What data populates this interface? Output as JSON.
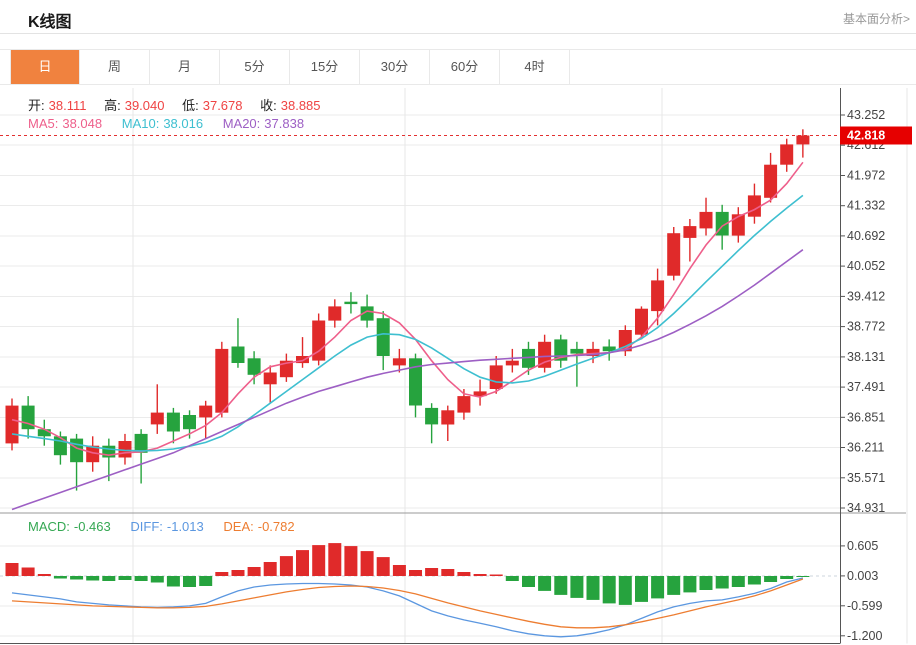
{
  "header": {
    "title": "K线图",
    "link_label": "基本面分析>"
  },
  "tabs": {
    "items": [
      "日",
      "周",
      "月",
      "5分",
      "15分",
      "30分",
      "60分",
      "4时"
    ],
    "active_index": 0
  },
  "ohlc": {
    "open": {
      "label": "开:",
      "value": "38.111"
    },
    "high": {
      "label": "高:",
      "value": "39.040"
    },
    "low": {
      "label": "低:",
      "value": "37.678"
    },
    "close": {
      "label": "收:",
      "value": "38.885"
    }
  },
  "ma": {
    "ma5": {
      "label": "MA5:",
      "value": "38.048"
    },
    "ma10": {
      "label": "MA10:",
      "value": "38.016"
    },
    "ma20": {
      "label": "MA20:",
      "value": "37.838"
    }
  },
  "macd_header": {
    "macd": {
      "label": "MACD:",
      "value": "-0.463"
    },
    "diff": {
      "label": "DIFF:",
      "value": "-1.013"
    },
    "dea": {
      "label": "DEA:",
      "value": "-0.782"
    }
  },
  "colors": {
    "up": "#e02a2a",
    "down": "#26a33e",
    "ma5": "#ee5f8b",
    "ma10": "#3ebfd0",
    "ma20": "#9d5fc4",
    "diff": "#5b97e0",
    "dea": "#ed7d31",
    "macd_text": "#35a853",
    "value_red": "#ef4343",
    "label_dark": "#222222",
    "price_tag_bg": "#e60000",
    "price_line": "#e23030",
    "tab_active_bg": "#f0823f",
    "link_gray": "#999999"
  },
  "chart_data": {
    "type": "candlestick",
    "note": "daily K-line with MA overlays and MACD sub-panel; no x-axis date labels visible",
    "main_panel": {
      "y_ticks": [
        43.252,
        42.612,
        41.972,
        41.332,
        40.692,
        40.052,
        39.412,
        38.772,
        38.131,
        37.491,
        36.851,
        36.211,
        35.571,
        34.931
      ],
      "last_price": 42.818,
      "candles_ohlc": [
        [
          36.3,
          37.25,
          36.15,
          37.1
        ],
        [
          37.1,
          37.3,
          36.4,
          36.6
        ],
        [
          36.6,
          36.8,
          36.25,
          36.45
        ],
        [
          36.45,
          36.55,
          35.85,
          36.05
        ],
        [
          36.4,
          36.5,
          35.3,
          35.9
        ],
        [
          35.9,
          36.45,
          35.7,
          36.25
        ],
        [
          36.25,
          36.4,
          35.5,
          36.0
        ],
        [
          36.0,
          36.5,
          35.85,
          36.35
        ],
        [
          36.5,
          36.6,
          35.45,
          36.1
        ],
        [
          36.7,
          37.55,
          36.5,
          36.95
        ],
        [
          36.95,
          37.05,
          36.3,
          36.55
        ],
        [
          36.9,
          37.0,
          36.4,
          36.6
        ],
        [
          36.85,
          37.2,
          36.4,
          37.1
        ],
        [
          36.95,
          38.45,
          36.85,
          38.3
        ],
        [
          38.35,
          38.95,
          37.9,
          38.0
        ],
        [
          38.1,
          38.25,
          37.55,
          37.75
        ],
        [
          37.55,
          37.95,
          37.15,
          37.8
        ],
        [
          37.7,
          38.2,
          37.6,
          38.05
        ],
        [
          38.0,
          38.55,
          37.9,
          38.15
        ],
        [
          38.05,
          39.05,
          37.95,
          38.9
        ],
        [
          38.9,
          39.35,
          38.75,
          39.2
        ],
        [
          39.3,
          39.5,
          39.05,
          39.25
        ],
        [
          39.2,
          39.45,
          38.75,
          38.9
        ],
        [
          38.95,
          39.1,
          37.85,
          38.15
        ],
        [
          37.95,
          38.3,
          37.8,
          38.1
        ],
        [
          38.1,
          38.2,
          36.85,
          37.1
        ],
        [
          37.05,
          37.15,
          36.3,
          36.7
        ],
        [
          36.7,
          37.1,
          36.35,
          37.0
        ],
        [
          36.95,
          37.45,
          36.8,
          37.3
        ],
        [
          37.3,
          37.65,
          37.1,
          37.4
        ],
        [
          37.45,
          38.15,
          37.35,
          37.95
        ],
        [
          37.95,
          38.3,
          37.8,
          38.05
        ],
        [
          38.3,
          38.45,
          37.75,
          37.9
        ],
        [
          37.9,
          38.6,
          37.8,
          38.45
        ],
        [
          38.5,
          38.6,
          37.9,
          38.05
        ],
        [
          38.3,
          38.45,
          37.5,
          38.2
        ],
        [
          38.15,
          38.45,
          38.0,
          38.3
        ],
        [
          38.35,
          38.5,
          38.05,
          38.25
        ],
        [
          38.25,
          38.8,
          38.15,
          38.7
        ],
        [
          38.6,
          39.2,
          38.5,
          39.15
        ],
        [
          39.1,
          40.0,
          38.8,
          39.75
        ],
        [
          39.85,
          40.88,
          39.75,
          40.75
        ],
        [
          40.65,
          41.05,
          40.15,
          40.9
        ],
        [
          40.85,
          41.5,
          40.7,
          41.2
        ],
        [
          41.2,
          41.35,
          40.4,
          40.7
        ],
        [
          40.7,
          41.3,
          40.55,
          41.15
        ],
        [
          41.1,
          41.8,
          40.95,
          41.55
        ],
        [
          41.5,
          42.45,
          41.4,
          42.2
        ],
        [
          42.2,
          42.75,
          42.05,
          42.63
        ],
        [
          42.63,
          42.95,
          42.35,
          42.818
        ]
      ],
      "ma5": [
        36.8,
        36.72,
        36.6,
        36.42,
        36.2,
        36.1,
        36.05,
        36.1,
        36.12,
        36.2,
        36.35,
        36.5,
        36.68,
        36.95,
        37.35,
        37.7,
        37.92,
        38.0,
        38.05,
        38.25,
        38.55,
        38.9,
        39.1,
        39.05,
        38.85,
        38.5,
        38.05,
        37.65,
        37.35,
        37.28,
        37.4,
        37.62,
        37.85,
        38.02,
        38.12,
        38.18,
        38.2,
        38.22,
        38.3,
        38.55,
        38.95,
        39.45,
        40.0,
        40.5,
        40.9,
        41.1,
        41.25,
        41.45,
        41.8,
        42.25
      ],
      "ma10": [
        36.5,
        36.45,
        36.4,
        36.35,
        36.28,
        36.22,
        36.18,
        36.15,
        36.14,
        36.15,
        36.18,
        36.24,
        36.32,
        36.45,
        36.65,
        36.9,
        37.15,
        37.4,
        37.65,
        37.9,
        38.15,
        38.38,
        38.55,
        38.62,
        38.6,
        38.5,
        38.32,
        38.1,
        37.88,
        37.7,
        37.6,
        37.58,
        37.62,
        37.72,
        37.85,
        37.98,
        38.1,
        38.22,
        38.35,
        38.52,
        38.75,
        39.05,
        39.38,
        39.72,
        40.05,
        40.38,
        40.7,
        41.0,
        41.28,
        41.55
      ],
      "ma20": [
        34.9,
        35.02,
        35.14,
        35.26,
        35.38,
        35.5,
        35.62,
        35.74,
        35.86,
        35.98,
        36.1,
        36.25,
        36.4,
        36.55,
        36.7,
        36.85,
        37.0,
        37.15,
        37.28,
        37.4,
        37.5,
        37.6,
        37.7,
        37.78,
        37.85,
        37.92,
        37.97,
        38.0,
        38.03,
        38.06,
        38.08,
        38.1,
        38.12,
        38.14,
        38.15,
        38.16,
        38.18,
        38.22,
        38.28,
        38.38,
        38.5,
        38.65,
        38.82,
        39.0,
        39.2,
        39.42,
        39.65,
        39.9,
        40.15,
        40.4
      ]
    },
    "macd_panel": {
      "y_ticks": [
        0.605,
        0.003,
        -0.599,
        -1.2
      ],
      "histogram": [
        0.26,
        0.17,
        0.04,
        -0.05,
        -0.07,
        -0.09,
        -0.1,
        -0.08,
        -0.1,
        -0.13,
        -0.21,
        -0.22,
        -0.2,
        0.08,
        0.12,
        0.18,
        0.28,
        0.4,
        0.52,
        0.62,
        0.66,
        0.6,
        0.5,
        0.38,
        0.22,
        0.12,
        0.16,
        0.14,
        0.08,
        0.04,
        0.03,
        -0.1,
        -0.22,
        -0.3,
        -0.38,
        -0.44,
        -0.48,
        -0.55,
        -0.58,
        -0.52,
        -0.45,
        -0.38,
        -0.33,
        -0.28,
        -0.25,
        -0.22,
        -0.17,
        -0.12,
        -0.06,
        -0.02
      ],
      "diff_line": [
        -0.34,
        -0.38,
        -0.42,
        -0.46,
        -0.52,
        -0.55,
        -0.58,
        -0.6,
        -0.62,
        -0.63,
        -0.62,
        -0.6,
        -0.55,
        -0.42,
        -0.3,
        -0.22,
        -0.18,
        -0.16,
        -0.15,
        -0.15,
        -0.16,
        -0.18,
        -0.22,
        -0.3,
        -0.4,
        -0.55,
        -0.7,
        -0.8,
        -0.88,
        -0.95,
        -1.02,
        -1.1,
        -1.16,
        -1.2,
        -1.22,
        -1.2,
        -1.15,
        -1.08,
        -0.98,
        -0.85,
        -0.72,
        -0.62,
        -0.55,
        -0.5,
        -0.48,
        -0.42,
        -0.35,
        -0.25,
        -0.12,
        -0.04
      ],
      "dea_line": [
        -0.5,
        -0.52,
        -0.54,
        -0.56,
        -0.58,
        -0.6,
        -0.61,
        -0.62,
        -0.63,
        -0.64,
        -0.64,
        -0.63,
        -0.61,
        -0.56,
        -0.5,
        -0.44,
        -0.38,
        -0.32,
        -0.27,
        -0.23,
        -0.21,
        -0.2,
        -0.21,
        -0.24,
        -0.29,
        -0.36,
        -0.45,
        -0.54,
        -0.62,
        -0.7,
        -0.77,
        -0.84,
        -0.91,
        -0.97,
        -1.02,
        -1.04,
        -1.04,
        -1.02,
        -0.98,
        -0.92,
        -0.85,
        -0.78,
        -0.7,
        -0.62,
        -0.55,
        -0.48,
        -0.4,
        -0.3,
        -0.18,
        -0.06
      ]
    }
  }
}
